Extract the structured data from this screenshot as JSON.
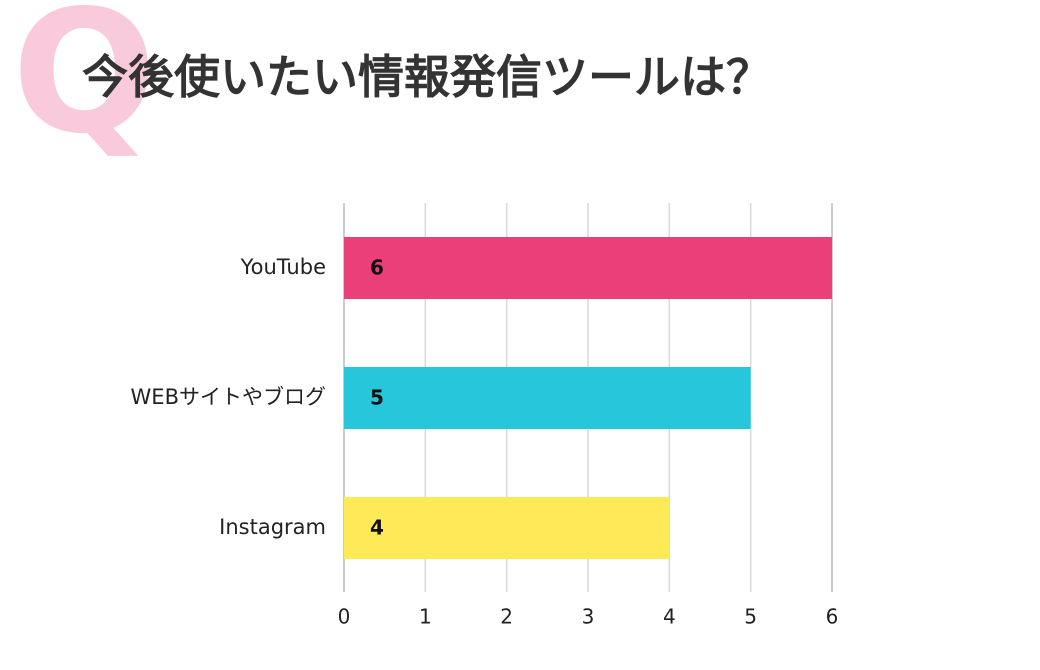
{
  "header": {
    "q_mark": "Q",
    "title": "今後使いたい情報発信ツールは？"
  },
  "colors": {
    "q_mark": "#f9cadb",
    "title": "#333333",
    "grid": "#d9d9d9",
    "axis": "#bbbbbb"
  },
  "chart_data": {
    "type": "bar",
    "orientation": "horizontal",
    "title": "",
    "xlabel": "",
    "ylabel": "",
    "categories": [
      "YouTube",
      "WEBサイトやブログ",
      "Instagram"
    ],
    "values": [
      6,
      5,
      4
    ],
    "colors": [
      "#ea3f78",
      "#27c6db",
      "#fdea56"
    ],
    "data_labels": [
      "6",
      "5",
      "4"
    ],
    "xlim": [
      0,
      6
    ],
    "xticks": [
      0,
      1,
      2,
      3,
      4,
      5,
      6
    ],
    "grid": true,
    "legend": "none"
  }
}
